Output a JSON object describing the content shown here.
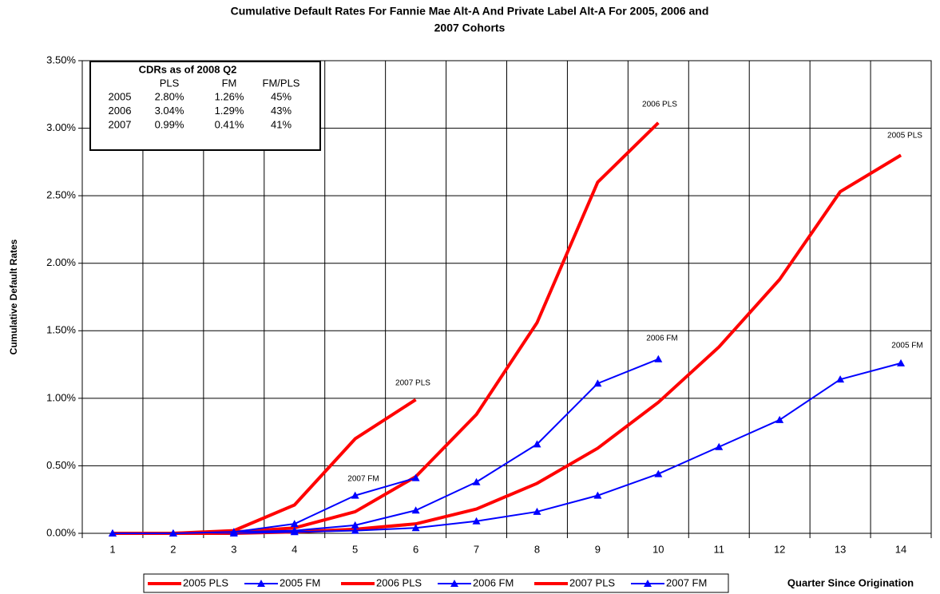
{
  "chart_data": {
    "type": "line",
    "title_lines": [
      "Cumulative Default Rates For Fannie Mae Alt-A And Private Label Alt-A For 2005, 2006 and",
      "2007 Cohorts"
    ],
    "y_label": "Cumulative Default Rates",
    "x_label": "Quarter Since Origination",
    "categories": [
      "1",
      "2",
      "3",
      "4",
      "5",
      "6",
      "7",
      "8",
      "9",
      "10",
      "11",
      "12",
      "13",
      "14"
    ],
    "ylim": [
      0,
      3.5
    ],
    "yticks": [
      {
        "value": 0,
        "label": "0.00%"
      },
      {
        "value": 0.5,
        "label": "0.50%"
      },
      {
        "value": 1,
        "label": "1.00%"
      },
      {
        "value": 1.5,
        "label": "1.50%"
      },
      {
        "value": 2,
        "label": "2.00%"
      },
      {
        "value": 2.5,
        "label": "2.50%"
      },
      {
        "value": 3,
        "label": "3.00%"
      },
      {
        "value": 3.5,
        "label": "3.50%"
      }
    ],
    "grid": true,
    "series": [
      {
        "name": "2005 PLS",
        "color": "#ff0000",
        "marker": false,
        "values": [
          0,
          0,
          0,
          0.01,
          0.03,
          0.07,
          0.18,
          0.37,
          0.63,
          0.97,
          1.38,
          1.88,
          2.53,
          2.8
        ]
      },
      {
        "name": "2005 FM",
        "color": "#0000ff",
        "marker": true,
        "values": [
          0,
          0,
          0,
          0.01,
          0.02,
          0.04,
          0.09,
          0.16,
          0.28,
          0.44,
          0.64,
          0.84,
          1.14,
          1.26
        ]
      },
      {
        "name": "2006 PLS",
        "color": "#ff0000",
        "marker": false,
        "values": [
          0,
          0,
          0.01,
          0.04,
          0.16,
          0.42,
          0.88,
          1.56,
          2.6,
          3.04,
          null,
          null,
          null,
          null
        ]
      },
      {
        "name": "2006 FM",
        "color": "#0000ff",
        "marker": true,
        "values": [
          0,
          0,
          0.01,
          0.02,
          0.06,
          0.17,
          0.38,
          0.66,
          1.11,
          1.29,
          null,
          null,
          null,
          null
        ]
      },
      {
        "name": "2007 PLS",
        "color": "#ff0000",
        "marker": false,
        "values": [
          0,
          0,
          0.02,
          0.21,
          0.7,
          0.99,
          null,
          null,
          null,
          null,
          null,
          null,
          null,
          null
        ]
      },
      {
        "name": "2007 FM",
        "color": "#0000ff",
        "marker": true,
        "values": [
          0,
          0,
          0.01,
          0.07,
          0.28,
          0.41,
          null,
          null,
          null,
          null,
          null,
          null,
          null,
          null
        ]
      }
    ],
    "annotations": [
      "2006 PLS",
      "2005 PLS",
      "2006 FM",
      "2005 FM",
      "2007 PLS",
      "2007 FM"
    ],
    "inset_table": {
      "title": "CDRs as of 2008 Q2",
      "columns": [
        "PLS",
        "FM",
        "FM/PLS"
      ],
      "rows": [
        [
          "2005",
          "2.80%",
          "1.26%",
          "45%"
        ],
        [
          "2006",
          "3.04%",
          "1.29%",
          "43%"
        ],
        [
          "2007",
          "0.99%",
          "0.41%",
          "41%"
        ]
      ]
    }
  }
}
